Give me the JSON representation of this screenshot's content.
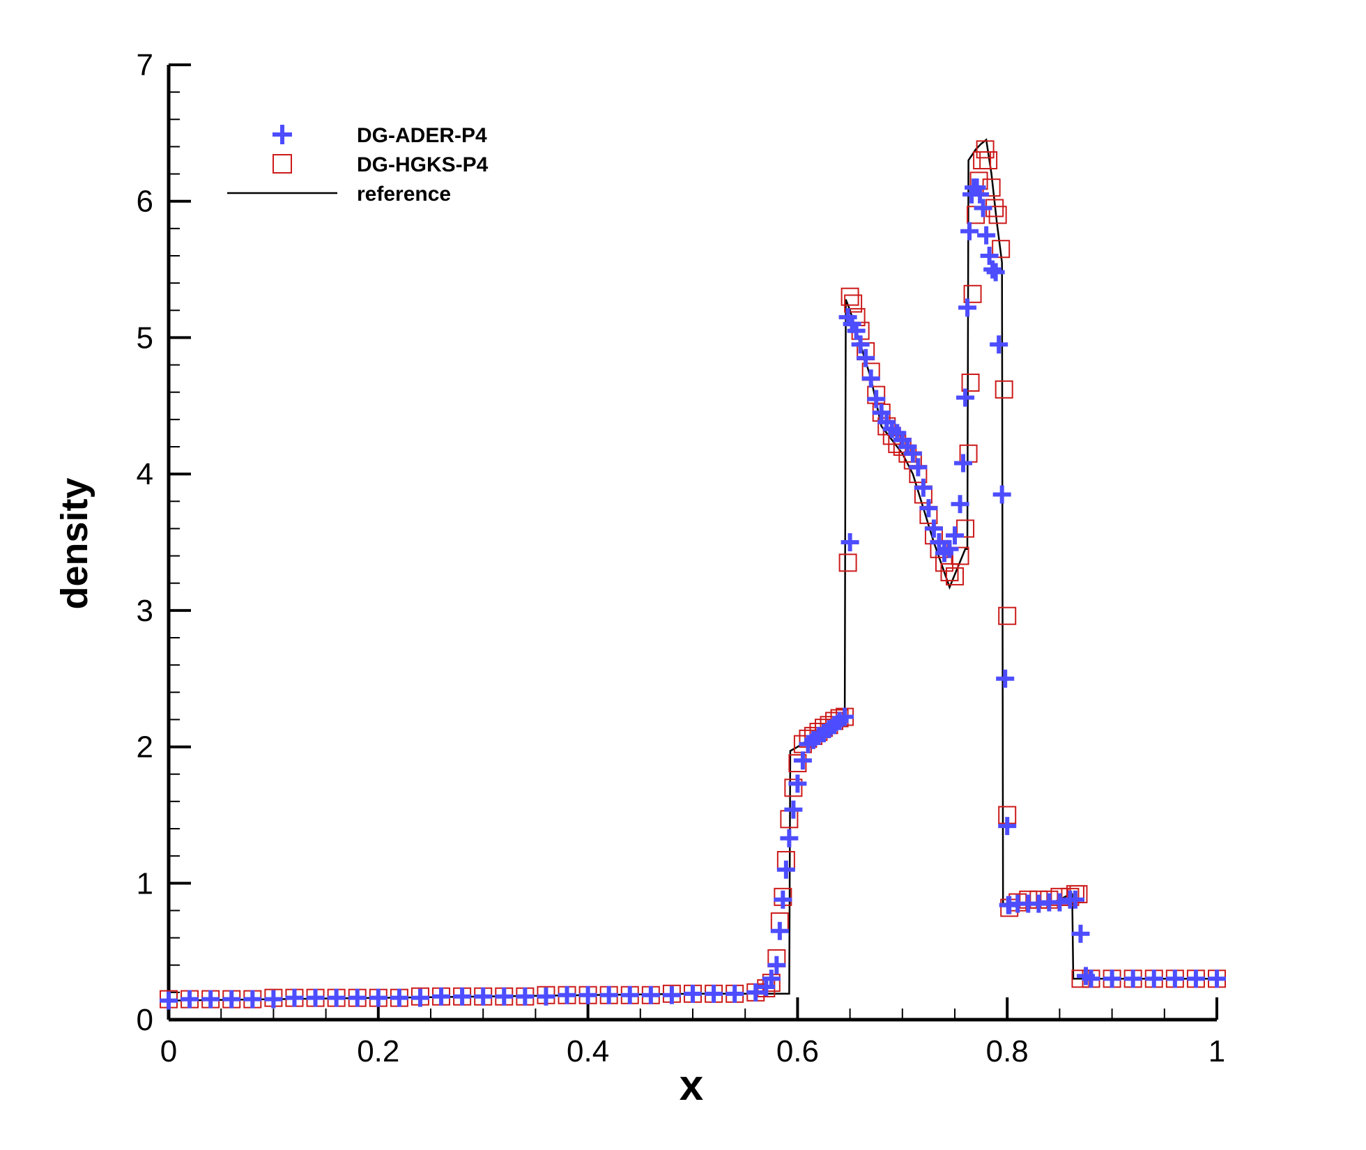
{
  "chart_data": {
    "type": "scatter",
    "xlabel": "x",
    "ylabel": "density",
    "xlim": [
      0,
      1
    ],
    "ylim": [
      0,
      7
    ],
    "x_ticks": [
      "0",
      "0.2",
      "0.4",
      "0.6",
      "0.8",
      "1"
    ],
    "y_ticks": [
      "0",
      "1",
      "2",
      "3",
      "4",
      "5",
      "6",
      "7"
    ],
    "grid": false,
    "legend_position": "top-left",
    "series": [
      {
        "name": "DG-ADER-P4",
        "kind": "plus-marker",
        "color": "#4d4dff",
        "x": [
          0.0,
          0.02,
          0.04,
          0.06,
          0.08,
          0.1,
          0.12,
          0.14,
          0.16,
          0.18,
          0.2,
          0.22,
          0.24,
          0.26,
          0.28,
          0.3,
          0.32,
          0.34,
          0.36,
          0.38,
          0.4,
          0.42,
          0.44,
          0.46,
          0.48,
          0.5,
          0.52,
          0.54,
          0.56,
          0.57,
          0.575,
          0.58,
          0.583,
          0.586,
          0.589,
          0.592,
          0.596,
          0.6,
          0.605,
          0.61,
          0.615,
          0.62,
          0.625,
          0.63,
          0.635,
          0.64,
          0.645,
          0.65,
          0.648,
          0.652,
          0.656,
          0.66,
          0.665,
          0.67,
          0.675,
          0.68,
          0.685,
          0.69,
          0.695,
          0.7,
          0.705,
          0.71,
          0.715,
          0.72,
          0.725,
          0.73,
          0.735,
          0.74,
          0.745,
          0.75,
          0.755,
          0.758,
          0.76,
          0.762,
          0.764,
          0.766,
          0.768,
          0.771,
          0.774,
          0.777,
          0.78,
          0.783,
          0.786,
          0.789,
          0.792,
          0.795,
          0.798,
          0.8,
          0.801,
          0.802,
          0.81,
          0.82,
          0.83,
          0.84,
          0.85,
          0.86,
          0.865,
          0.87,
          0.875,
          0.88,
          0.9,
          0.92,
          0.94,
          0.96,
          0.98,
          1.0
        ],
        "y": [
          0.14,
          0.15,
          0.15,
          0.15,
          0.15,
          0.15,
          0.16,
          0.16,
          0.16,
          0.16,
          0.16,
          0.16,
          0.16,
          0.17,
          0.17,
          0.17,
          0.17,
          0.17,
          0.17,
          0.18,
          0.18,
          0.18,
          0.18,
          0.18,
          0.18,
          0.19,
          0.19,
          0.19,
          0.2,
          0.24,
          0.3,
          0.4,
          0.65,
          0.88,
          1.1,
          1.33,
          1.54,
          1.73,
          1.9,
          2.02,
          2.05,
          2.08,
          2.1,
          2.13,
          2.16,
          2.19,
          2.22,
          3.5,
          5.15,
          5.1,
          5.05,
          4.95,
          4.85,
          4.7,
          4.55,
          4.45,
          4.38,
          4.33,
          4.3,
          4.25,
          4.2,
          4.15,
          4.05,
          3.9,
          3.75,
          3.6,
          3.5,
          3.42,
          3.45,
          3.55,
          3.78,
          4.08,
          4.56,
          5.22,
          5.78,
          6.05,
          6.1,
          6.1,
          6.05,
          5.95,
          5.75,
          5.6,
          5.5,
          5.48,
          4.95,
          3.85,
          2.5,
          1.42,
          0.84,
          0.84,
          0.85,
          0.85,
          0.85,
          0.86,
          0.86,
          0.88,
          0.88,
          0.63,
          0.32,
          0.3,
          0.3,
          0.3,
          0.3,
          0.3,
          0.3,
          0.3
        ]
      },
      {
        "name": "DG-HGKS-P4",
        "kind": "square-marker",
        "color": "#cc1a1a",
        "x": [
          0.0,
          0.02,
          0.04,
          0.06,
          0.08,
          0.1,
          0.12,
          0.14,
          0.16,
          0.18,
          0.2,
          0.22,
          0.24,
          0.26,
          0.28,
          0.3,
          0.32,
          0.34,
          0.36,
          0.38,
          0.4,
          0.42,
          0.44,
          0.46,
          0.48,
          0.5,
          0.52,
          0.54,
          0.56,
          0.57,
          0.575,
          0.58,
          0.583,
          0.586,
          0.589,
          0.592,
          0.596,
          0.6,
          0.605,
          0.61,
          0.615,
          0.62,
          0.625,
          0.63,
          0.635,
          0.64,
          0.645,
          0.648,
          0.65,
          0.653,
          0.656,
          0.66,
          0.665,
          0.67,
          0.675,
          0.68,
          0.685,
          0.69,
          0.695,
          0.7,
          0.705,
          0.71,
          0.715,
          0.72,
          0.725,
          0.73,
          0.735,
          0.74,
          0.745,
          0.75,
          0.755,
          0.76,
          0.763,
          0.765,
          0.767,
          0.77,
          0.773,
          0.776,
          0.779,
          0.782,
          0.785,
          0.788,
          0.791,
          0.794,
          0.797,
          0.8,
          0.8,
          0.802,
          0.81,
          0.82,
          0.83,
          0.84,
          0.85,
          0.86,
          0.865,
          0.868,
          0.87,
          0.88,
          0.9,
          0.92,
          0.94,
          0.96,
          0.98,
          1.0
        ],
        "y": [
          0.15,
          0.15,
          0.15,
          0.15,
          0.15,
          0.16,
          0.16,
          0.16,
          0.16,
          0.16,
          0.16,
          0.16,
          0.17,
          0.17,
          0.17,
          0.17,
          0.17,
          0.17,
          0.18,
          0.18,
          0.18,
          0.18,
          0.18,
          0.18,
          0.19,
          0.19,
          0.19,
          0.19,
          0.2,
          0.23,
          0.27,
          0.45,
          0.72,
          0.9,
          1.17,
          1.47,
          1.7,
          1.88,
          2.02,
          2.06,
          2.08,
          2.11,
          2.14,
          2.16,
          2.19,
          2.21,
          2.22,
          3.35,
          5.3,
          5.25,
          5.15,
          5.05,
          4.9,
          4.75,
          4.58,
          4.45,
          4.35,
          4.28,
          4.22,
          4.2,
          4.15,
          4.1,
          4.0,
          3.85,
          3.7,
          3.55,
          3.45,
          3.35,
          3.28,
          3.25,
          3.4,
          3.6,
          4.15,
          4.67,
          5.32,
          5.9,
          6.15,
          6.3,
          6.38,
          6.3,
          6.1,
          5.95,
          5.9,
          5.65,
          4.62,
          2.96,
          1.5,
          0.82,
          0.86,
          0.88,
          0.88,
          0.88,
          0.9,
          0.9,
          0.92,
          0.92,
          0.3,
          0.3,
          0.3,
          0.3,
          0.3,
          0.3,
          0.3,
          0.3
        ]
      },
      {
        "name": "reference",
        "kind": "line",
        "color": "#000000",
        "x": [
          0.0,
          0.1,
          0.2,
          0.3,
          0.4,
          0.5,
          0.58,
          0.592,
          0.593,
          0.6,
          0.64,
          0.645,
          0.646,
          0.65,
          0.66,
          0.67,
          0.68,
          0.69,
          0.7,
          0.71,
          0.72,
          0.73,
          0.74,
          0.745,
          0.76,
          0.762,
          0.763,
          0.77,
          0.775,
          0.78,
          0.785,
          0.79,
          0.795,
          0.796,
          0.8,
          0.81,
          0.82,
          0.83,
          0.84,
          0.85,
          0.86,
          0.862,
          0.863,
          0.87,
          0.9,
          0.95,
          1.0
        ],
        "y": [
          0.14,
          0.15,
          0.16,
          0.17,
          0.18,
          0.19,
          0.19,
          0.19,
          1.97,
          2.0,
          2.2,
          2.23,
          5.28,
          5.2,
          4.95,
          4.7,
          4.35,
          4.25,
          4.15,
          4.0,
          3.75,
          3.5,
          3.28,
          3.17,
          3.45,
          3.45,
          6.3,
          6.38,
          6.42,
          6.45,
          6.2,
          5.85,
          5.55,
          0.85,
          0.85,
          0.85,
          0.85,
          0.85,
          0.85,
          0.88,
          0.92,
          0.92,
          0.3,
          0.3,
          0.3,
          0.3,
          0.3
        ]
      }
    ]
  }
}
